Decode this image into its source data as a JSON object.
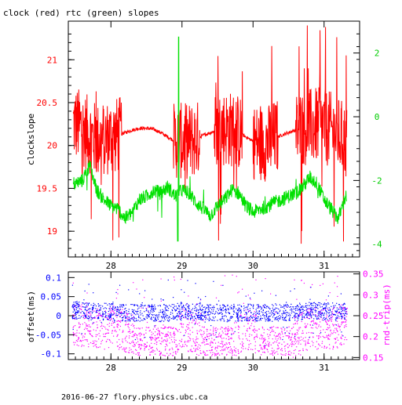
{
  "title": "clock (red) rtc (green) slopes",
  "footer": "2016-06-27 flory.physics.ubc.ca",
  "colors": {
    "clock": "#ff0000",
    "rtc": "#00e000",
    "offset": "#0000ff",
    "rnd_trip": "#ff00ff",
    "axis": "#000000"
  },
  "chart_data": [
    {
      "type": "line",
      "title": "clock (red) rtc (green) slopes",
      "xlabel": "",
      "x_ticks": [
        "28",
        "29",
        "30",
        "31"
      ],
      "xlim": [
        27.4,
        31.5
      ],
      "ylabel": "clockslope",
      "y_ticks": [
        "19",
        "19.5",
        "20",
        "20.5",
        "21"
      ],
      "ylim": [
        18.7,
        21.45
      ],
      "y2label": "",
      "y2_ticks": [
        "-4",
        "-2",
        "0",
        "2"
      ],
      "y2lim": [
        -4.4,
        3.0
      ],
      "series": [
        {
          "name": "clock (red)",
          "axis": "left",
          "x": [
            27.5,
            27.6,
            27.7,
            27.8,
            27.9,
            28.0,
            28.1,
            28.2,
            28.3,
            28.4,
            28.5,
            28.6,
            28.7,
            28.8,
            28.9,
            29.0,
            29.1,
            29.2,
            29.3,
            29.4,
            29.5,
            29.6,
            29.7,
            29.8,
            29.9,
            30.0,
            30.1,
            30.2,
            30.3,
            30.4,
            30.5,
            30.6,
            30.7,
            30.8,
            30.9,
            31.0,
            31.1,
            31.2,
            31.3
          ],
          "values": [
            20.25,
            20.2,
            20.12,
            20.05,
            20.08,
            20.1,
            20.12,
            20.15,
            20.18,
            20.2,
            20.2,
            20.19,
            20.15,
            20.1,
            20.05,
            20.05,
            20.05,
            20.07,
            20.12,
            20.15,
            20.18,
            20.2,
            20.19,
            20.15,
            20.1,
            20.05,
            20.02,
            20.03,
            20.08,
            20.12,
            20.15,
            20.18,
            20.2,
            20.22,
            20.23,
            20.22,
            20.18,
            20.12,
            20.05
          ]
        },
        {
          "name": "rtc (green)",
          "axis": "right",
          "x": [
            27.5,
            27.6,
            27.7,
            27.8,
            27.9,
            28.0,
            28.1,
            28.2,
            28.3,
            28.4,
            28.5,
            28.6,
            28.7,
            28.8,
            28.9,
            29.0,
            29.1,
            29.2,
            29.3,
            29.4,
            29.5,
            29.6,
            29.7,
            29.8,
            29.9,
            30.0,
            30.1,
            30.2,
            30.3,
            30.4,
            30.5,
            30.6,
            30.7,
            30.8,
            30.9,
            31.0,
            31.1,
            31.2,
            31.3
          ],
          "values": [
            -2.1,
            -2.0,
            -1.5,
            -2.3,
            -2.6,
            -2.8,
            -2.9,
            -3.2,
            -3.0,
            -2.6,
            -2.5,
            -2.3,
            -2.4,
            -2.2,
            -2.5,
            -2.3,
            -2.4,
            -2.7,
            -2.9,
            -3.1,
            -2.8,
            -2.6,
            -2.3,
            -2.4,
            -2.8,
            -3.0,
            -2.9,
            -2.8,
            -2.7,
            -2.6,
            -2.5,
            -2.4,
            -2.2,
            -1.9,
            -2.1,
            -2.6,
            -2.9,
            -3.2,
            -2.5
          ]
        }
      ]
    },
    {
      "type": "scatter",
      "xlabel": "",
      "x_ticks": [
        "28",
        "29",
        "30",
        "31"
      ],
      "xlim": [
        27.4,
        31.5
      ],
      "ylabel": "offset(ms)",
      "y_ticks": [
        "-0.1",
        "-0.05",
        "0",
        "0.05",
        "0.1"
      ],
      "ylim": [
        -0.115,
        0.115
      ],
      "y2label": "rnd-trip(ms)",
      "y2_ticks": [
        "0.15",
        "0.2",
        "0.25",
        "0.3",
        "0.35"
      ],
      "y2lim": [
        0.145,
        0.355
      ],
      "series": [
        {
          "name": "offset",
          "axis": "left",
          "x": [
            27.5,
            27.8,
            28.1,
            28.4,
            28.7,
            29.0,
            29.3,
            29.6,
            29.9,
            30.2,
            30.5,
            30.8,
            31.1,
            31.3
          ],
          "values": [
            0.015,
            0.012,
            0.01,
            0.008,
            0.008,
            0.012,
            0.01,
            0.008,
            0.01,
            0.008,
            0.01,
            0.015,
            0.012,
            0.015
          ]
        },
        {
          "name": "rnd-trip",
          "axis": "right",
          "x": [
            27.5,
            27.8,
            28.1,
            28.4,
            28.7,
            29.0,
            29.3,
            29.6,
            29.9,
            30.2,
            30.5,
            30.8,
            31.1,
            31.3
          ],
          "values": [
            0.23,
            0.22,
            0.22,
            0.2,
            0.19,
            0.22,
            0.2,
            0.19,
            0.22,
            0.2,
            0.19,
            0.22,
            0.22,
            0.23
          ]
        }
      ]
    }
  ]
}
